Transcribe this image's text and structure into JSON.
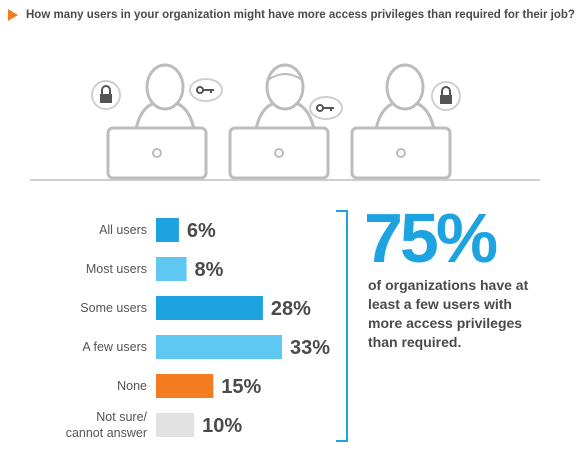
{
  "question": "How many users in your organization might have more access privileges than required for their job?",
  "callout": {
    "percent": "75%",
    "text": "of organizations have at least a few users with more access privileges than required."
  },
  "colors": {
    "blue": "#1ca3e0",
    "light_blue": "#5ec8f2",
    "orange": "#f47b20",
    "gray": "#e2e2e2",
    "accent": "#f47b20"
  },
  "illustration_icons": [
    "person-icon",
    "laptop-icon",
    "lock-icon",
    "key-icon"
  ],
  "chart_data": {
    "type": "bar",
    "orientation": "horizontal",
    "categories": [
      "All users",
      "Most users",
      "Some users",
      "A few users",
      "None",
      "Not sure/\ncannot answer"
    ],
    "values": [
      6,
      8,
      28,
      33,
      15,
      10
    ],
    "value_labels": [
      "6%",
      "8%",
      "28%",
      "33%",
      "15%",
      "10%"
    ],
    "bar_colors": [
      "#1ca3e0",
      "#5ec8f2",
      "#1ca3e0",
      "#5ec8f2",
      "#f47b20",
      "#e2e2e2"
    ],
    "xlim": [
      0,
      33
    ],
    "grid": false,
    "legend": "none"
  }
}
